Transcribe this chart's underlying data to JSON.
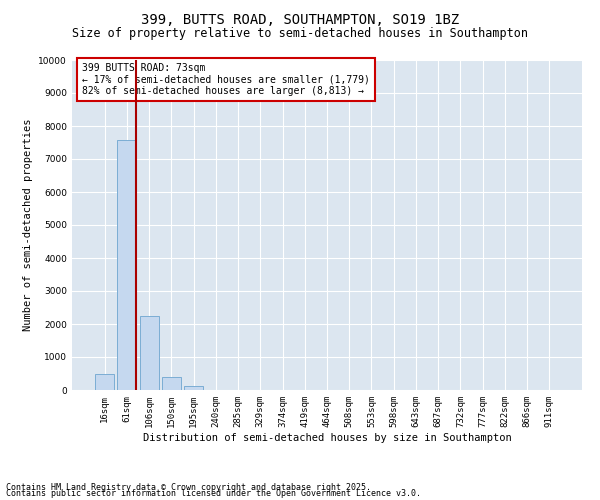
{
  "title": "399, BUTTS ROAD, SOUTHAMPTON, SO19 1BZ",
  "subtitle": "Size of property relative to semi-detached houses in Southampton",
  "xlabel": "Distribution of semi-detached houses by size in Southampton",
  "ylabel": "Number of semi-detached properties",
  "categories": [
    "16sqm",
    "61sqm",
    "106sqm",
    "150sqm",
    "195sqm",
    "240sqm",
    "285sqm",
    "329sqm",
    "374sqm",
    "419sqm",
    "464sqm",
    "508sqm",
    "553sqm",
    "598sqm",
    "643sqm",
    "687sqm",
    "732sqm",
    "777sqm",
    "822sqm",
    "866sqm",
    "911sqm"
  ],
  "values": [
    500,
    7580,
    2230,
    390,
    110,
    0,
    0,
    0,
    0,
    0,
    0,
    0,
    0,
    0,
    0,
    0,
    0,
    0,
    0,
    0,
    0
  ],
  "bar_color": "#c5d8ef",
  "bar_edge_color": "#7badd4",
  "vline_x": 1.4,
  "vline_color": "#aa0000",
  "annotation_box_text": "399 BUTTS ROAD: 73sqm\n← 17% of semi-detached houses are smaller (1,779)\n82% of semi-detached houses are larger (8,813) →",
  "ylim": [
    0,
    10000
  ],
  "yticks": [
    0,
    1000,
    2000,
    3000,
    4000,
    5000,
    6000,
    7000,
    8000,
    9000,
    10000
  ],
  "bg_color": "#dce6f0",
  "grid_color": "#ffffff",
  "footer_line1": "Contains HM Land Registry data © Crown copyright and database right 2025.",
  "footer_line2": "Contains public sector information licensed under the Open Government Licence v3.0.",
  "title_fontsize": 10,
  "subtitle_fontsize": 8.5,
  "axis_label_fontsize": 7.5,
  "tick_fontsize": 6.5,
  "annotation_fontsize": 7,
  "footer_fontsize": 6
}
